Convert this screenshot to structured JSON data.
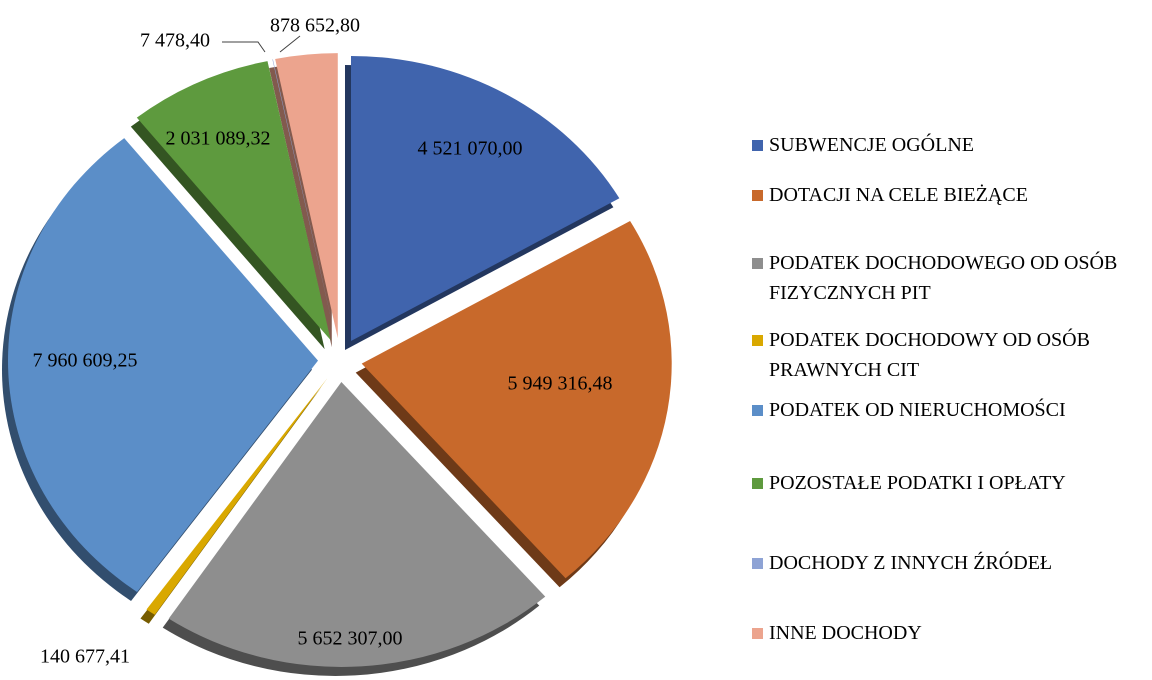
{
  "chart_data": {
    "type": "pie",
    "series": [
      {
        "categories": [
          "SUBWENCJE OGÓLNE",
          "DOTACJI NA CELE BIEŻĄCE",
          "PODATEK DOCHODOWEGO OD OSÓB FIZYCZNYCH PIT",
          "PODATEK DOCHODOWY OD OSÓB PRAWNYCH CIT",
          "PODATEK OD NIERUCHOMOŚCI",
          "POZOSTAŁE PODATKI I OPŁATY",
          "DOCHODY Z INNYCH ŹRÓDEŁ",
          "INNE DOCHODY"
        ],
        "values": [
          4521070.0,
          5949316.48,
          5652307.0,
          140677.41,
          7960609.25,
          2031089.32,
          7478.4,
          878652.8
        ],
        "value_labels": [
          "4 521 070,00",
          "5 949 316,48",
          "5 652 307,00",
          "140 677,41",
          "7 960 609,25",
          "2 031 089,32",
          "7 478,40",
          "878 652,80"
        ],
        "colors": [
          "#4064ad",
          "#c8692b",
          "#8e8e8e",
          "#d9a800",
          "#5b8ec8",
          "#5e9a3e",
          "#8ea3d5",
          "#eca48e"
        ]
      }
    ]
  }
}
